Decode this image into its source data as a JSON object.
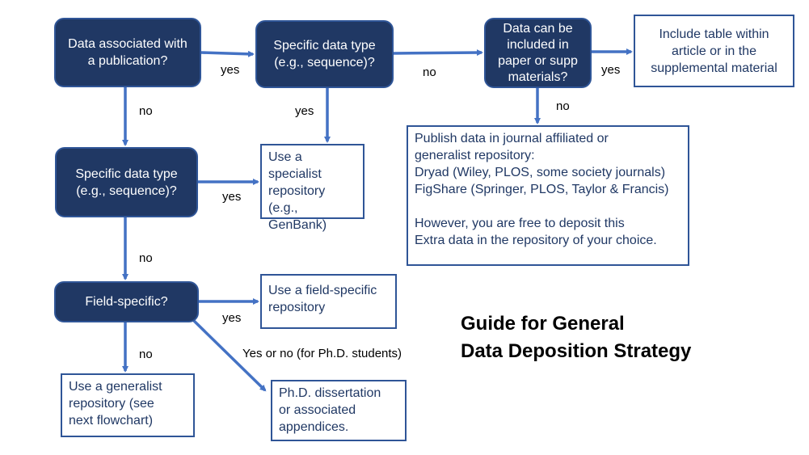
{
  "decisions": {
    "publication": "Data associated with\na publication?",
    "specific_top": "Specific data type\n(e.g., sequence)?",
    "include_paper": "Data can be\nincluded in\npaper or supp\nmaterials?",
    "specific_left": "Specific data type\n(e.g., sequence)?",
    "field_specific": "Field-specific?"
  },
  "outcomes": {
    "include_table": "Include table within\narticle or in the\nsupplemental material",
    "specialist": "Use a specialist\nrepository (e.g.,\nGenBank)",
    "publish": "Publish data in journal affiliated or\ngeneralist repository:\nDryad (Wiley, PLOS, some society journals)\nFigShare (Springer, PLOS, Taylor & Francis)\n\nHowever, you are free to deposit this\nExtra data in the repository of your choice.",
    "field_repo": "Use a field-specific\nrepository",
    "generalist": "Use a generalist\nrepository (see\nnext flowchart)",
    "phd": "Ph.D. dissertation\nor associated\nappendices."
  },
  "labels": {
    "yes1": "yes",
    "no1": "no",
    "yes2": "yes",
    "no2": "no",
    "yes3": "yes",
    "no3": "no",
    "yes4": "yes",
    "no4": "no",
    "yes5": "yes",
    "no5": "no",
    "phd": "Yes or no (for Ph.D. students)"
  },
  "title": "Guide for General\nData Deposition Strategy",
  "colors": {
    "node_fill": "#203864",
    "arrow": "#4472c4",
    "border": "#2f5597"
  }
}
